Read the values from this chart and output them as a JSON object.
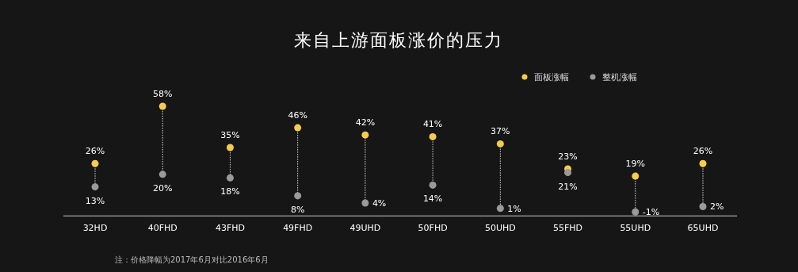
{
  "chart_data": {
    "type": "scatter",
    "title": "来自上游面板涨价的压力",
    "categories": [
      "32HD",
      "40FHD",
      "43FHD",
      "49FHD",
      "49UHD",
      "50FHD",
      "50UHD",
      "55FHD",
      "55UHD",
      "65UHD"
    ],
    "series": [
      {
        "name": "面板涨幅",
        "color": "#f7cb4d",
        "values": [
          26,
          58,
          35,
          46,
          42,
          41,
          37,
          23,
          19,
          26
        ],
        "value_labels": [
          "26%",
          "58%",
          "35%",
          "46%",
          "42%",
          "41%",
          "37%",
          "23%",
          "19%",
          "26%"
        ]
      },
      {
        "name": "整机涨幅",
        "color": "#9a9a9a",
        "values": [
          13,
          20,
          18,
          8,
          4,
          14,
          1,
          21,
          -1,
          2
        ],
        "value_labels": [
          "13%",
          "20%",
          "18%",
          "8%",
          "4%",
          "14%",
          "1%",
          "21%",
          "-1%",
          "2%"
        ]
      }
    ],
    "line_style": "dotted",
    "marker": "circle",
    "legend": "top right",
    "grid": false,
    "annotations": [
      "注：价格降幅为2017年6月对比2016年6月"
    ]
  }
}
